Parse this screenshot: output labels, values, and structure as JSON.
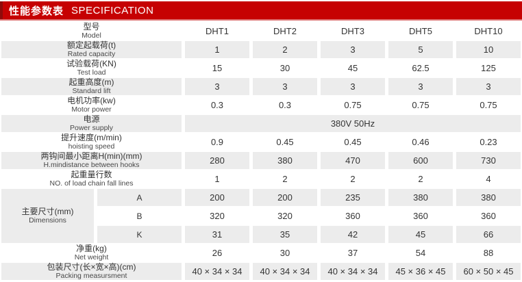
{
  "header": {
    "title_zh": "性能参数表",
    "title_en": "SPECIFICATION"
  },
  "colors": {
    "accent_red": "#c60102",
    "accent_red_dark": "#8e0b0b",
    "underline_pink": "#dd6f6f",
    "row_alt_bg": "#ececec"
  },
  "table": {
    "model_label": {
      "zh": "型号",
      "en": "Model"
    },
    "models": [
      "DHT1",
      "DHT2",
      "DHT3",
      "DHT5",
      "DHT10"
    ],
    "rows": [
      {
        "label_zh": "额定起载荷(t)",
        "label_en": "Rated capacity",
        "values": [
          "1",
          "2",
          "3",
          "5",
          "10"
        ]
      },
      {
        "label_zh": "试验载荷(KN)",
        "label_en": "Test load",
        "values": [
          "15",
          "30",
          "45",
          "62.5",
          "125"
        ]
      },
      {
        "label_zh": "起重高度(m)",
        "label_en": "Standard lift",
        "values": [
          "3",
          "3",
          "3",
          "3",
          "3"
        ]
      },
      {
        "label_zh": "电机功率(kw)",
        "label_en": "Motor power",
        "values": [
          "0.3",
          "0.3",
          "0.75",
          "0.75",
          "0.75"
        ]
      },
      {
        "label_zh": "电源",
        "label_en": "Power supply",
        "merged_value": "380V 50Hz"
      },
      {
        "label_zh": "提升速度(m/min)",
        "label_en": "hoisting speed",
        "values": [
          "0.9",
          "0.45",
          "0.45",
          "0.46",
          "0.23"
        ]
      },
      {
        "label_zh": "两钩间最小距离H(min)(mm)",
        "label_en": "H.mindistance between hooks",
        "values": [
          "280",
          "380",
          "470",
          "600",
          "730"
        ]
      },
      {
        "label_zh": "起重量行数",
        "label_en": "NO. of load chain fall lines",
        "values": [
          "1",
          "2",
          "2",
          "2",
          "4"
        ]
      },
      {
        "label_zh": "净重(kg)",
        "label_en": "Net weight",
        "values": [
          "26",
          "30",
          "37",
          "54",
          "88"
        ]
      },
      {
        "label_zh": "包装尺寸(长×宽×高)(cm)",
        "label_en": "Packing measursment",
        "values": [
          "40 × 34 × 34",
          "40 × 34 × 34",
          "40 × 34 × 34",
          "45 × 36 × 45",
          "60 × 50 × 45"
        ]
      }
    ],
    "dimensions": {
      "label_zh": "主要尺寸(mm)",
      "label_en": "Dimensions",
      "sub_rows": [
        {
          "key": "A",
          "values": [
            "200",
            "200",
            "235",
            "380",
            "380"
          ]
        },
        {
          "key": "B",
          "values": [
            "320",
            "320",
            "360",
            "360",
            "360"
          ]
        },
        {
          "key": "K",
          "values": [
            "31",
            "35",
            "42",
            "45",
            "66"
          ]
        }
      ]
    }
  }
}
